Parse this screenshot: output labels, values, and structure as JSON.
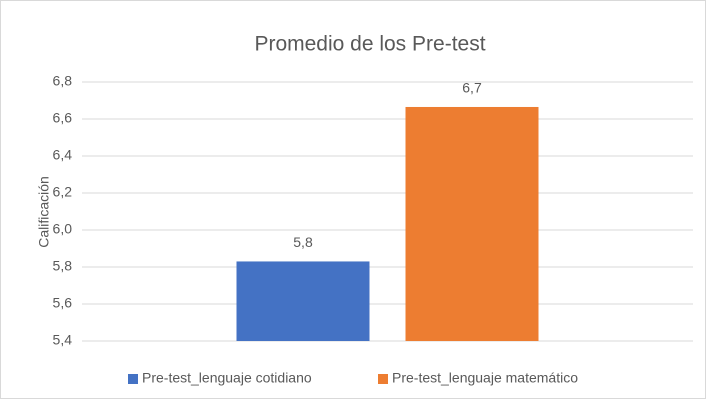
{
  "chart_data": {
    "type": "bar",
    "title": "Promedio de los Pre-test",
    "y_label": "Calificación",
    "categories": [
      null
    ],
    "series": [
      {
        "name": "Pre-test_lenguaje cotidiano",
        "color": "#4472c4",
        "values": [
          5.83
        ],
        "value_labels": [
          "5,8"
        ]
      },
      {
        "name": "Pre-test_lenguaje matemático",
        "color": "#ed7d31",
        "values": [
          6.665
        ],
        "value_labels": [
          "6,7"
        ]
      }
    ],
    "ylim": [
      5.4,
      6.8
    ],
    "yticks": [
      {
        "value": 5.4,
        "label": "5,4"
      },
      {
        "value": 5.6,
        "label": "5,6"
      },
      {
        "value": 5.8,
        "label": "5,8"
      },
      {
        "value": 6.0,
        "label": "6,0"
      },
      {
        "value": 6.2,
        "label": "6,2"
      },
      {
        "value": 6.4,
        "label": "6,4"
      },
      {
        "value": 6.6,
        "label": "6,6"
      },
      {
        "value": 6.8,
        "label": "6,8"
      }
    ],
    "grid": true,
    "legend": "bottom"
  }
}
